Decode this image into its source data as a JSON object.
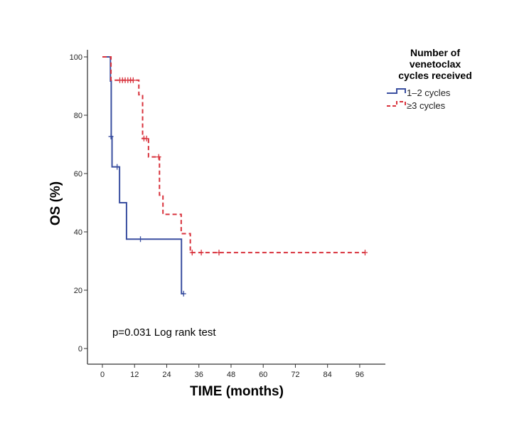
{
  "chart_data": {
    "type": "line",
    "subtype": "kaplan-meier step",
    "title": "",
    "xlabel": "TIME (months)",
    "ylabel": "OS (%)",
    "xlim": [
      -6,
      106
    ],
    "ylim": [
      -5,
      105
    ],
    "xticks": [
      0,
      12,
      24,
      36,
      48,
      60,
      72,
      84,
      96
    ],
    "yticks": [
      0,
      20,
      40,
      60,
      80,
      100
    ],
    "grid": false,
    "legend": {
      "title_lines": [
        "Number of",
        "venetoclax",
        "cycles received"
      ],
      "placement": "top-right"
    },
    "annotation": "p=0.031 Log rank test",
    "series": [
      {
        "name": "1–2 cycles",
        "color": "#3a4fa0",
        "style": "solid",
        "steps": [
          [
            0,
            100
          ],
          [
            3,
            91.7
          ],
          [
            3.3,
            72.7
          ],
          [
            3.6,
            62.3
          ],
          [
            6.4,
            50
          ],
          [
            9,
            37.5
          ],
          [
            29.5,
            18.8
          ]
        ],
        "end_x": 30.5,
        "censored": [
          [
            3.2,
            72.7
          ],
          [
            5.5,
            62.3
          ],
          [
            14.2,
            37.5
          ],
          [
            30.3,
            18.8
          ]
        ]
      },
      {
        "name": "≥3 cycles",
        "color": "#d8323c",
        "style": "dashed",
        "steps": [
          [
            0,
            100
          ],
          [
            3.2,
            92
          ],
          [
            13.6,
            87
          ],
          [
            15,
            72
          ],
          [
            17.2,
            65.7
          ],
          [
            21.3,
            52.6
          ],
          [
            22.6,
            46
          ],
          [
            29.4,
            39.4
          ],
          [
            32.8,
            32.9
          ]
        ],
        "end_x": 98,
        "censored": [
          [
            6.5,
            92
          ],
          [
            7.5,
            92
          ],
          [
            8.5,
            92
          ],
          [
            9.5,
            92
          ],
          [
            10.5,
            92
          ],
          [
            11.5,
            92
          ],
          [
            15.5,
            72
          ],
          [
            16.5,
            72
          ],
          [
            21,
            65.7
          ],
          [
            33.5,
            32.9
          ],
          [
            36.9,
            32.9
          ],
          [
            43.5,
            32.9
          ],
          [
            98,
            32.9
          ]
        ]
      }
    ]
  }
}
